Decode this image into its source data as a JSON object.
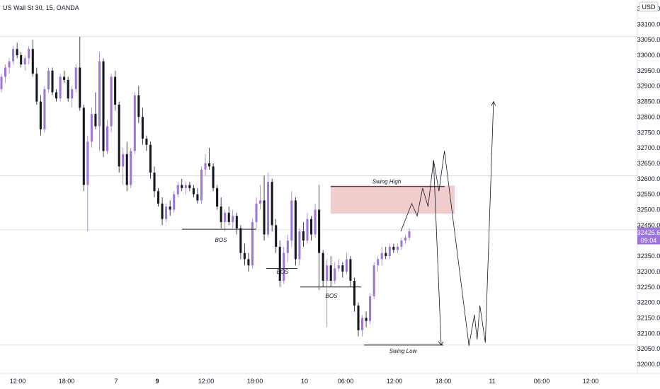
{
  "chart_data": {
    "type": "candlestick",
    "title": "US Wall St 30, 15, OANDA",
    "currency": "USD",
    "y_range": [
      31980,
      33190
    ],
    "y_ticks": [
      32000,
      32050,
      32100,
      32150,
      32200,
      32250,
      32300,
      32350,
      32400,
      32450,
      32500,
      32550,
      32600,
      32650,
      32700,
      32750,
      32800,
      32850,
      32900,
      32950,
      33000,
      33050,
      33100,
      33150
    ],
    "x_ticks": [
      "12:00",
      "18:00",
      "7",
      "9",
      "12:00",
      "18:00",
      "10",
      "06:00",
      "12:00",
      "18:00",
      "11",
      "06:00",
      "12:00"
    ],
    "current_price": "32426.6",
    "countdown": "09:04",
    "horizontal_lines": [
      33060,
      32610,
      32435,
      32062
    ],
    "annotations": {
      "bos_labels": [
        "BOS",
        "BOS",
        "BOS"
      ],
      "swing_high_label": "Swing High",
      "swing_low_label": "Swing Low",
      "swing_high_level": 32575,
      "swing_low_level": 32062,
      "supply_zone": [
        32487,
        32578
      ]
    },
    "candles": [
      {
        "o": 32890,
        "h": 32940,
        "l": 32880,
        "c": 32930
      },
      {
        "o": 32930,
        "h": 32970,
        "l": 32910,
        "c": 32960
      },
      {
        "o": 32960,
        "h": 32990,
        "l": 32940,
        "c": 32980
      },
      {
        "o": 32980,
        "h": 33030,
        "l": 32970,
        "c": 33020
      },
      {
        "o": 33020,
        "h": 33040,
        "l": 32990,
        "c": 33000
      },
      {
        "o": 33000,
        "h": 33010,
        "l": 32960,
        "c": 32970
      },
      {
        "o": 32970,
        "h": 33000,
        "l": 32950,
        "c": 32990
      },
      {
        "o": 32990,
        "h": 33030,
        "l": 32970,
        "c": 33020
      },
      {
        "o": 33020,
        "h": 33050,
        "l": 32930,
        "c": 32940
      },
      {
        "o": 32940,
        "h": 32960,
        "l": 32840,
        "c": 32850
      },
      {
        "o": 32850,
        "h": 32870,
        "l": 32740,
        "c": 32760
      },
      {
        "o": 32760,
        "h": 32900,
        "l": 32750,
        "c": 32890
      },
      {
        "o": 32890,
        "h": 32960,
        "l": 32880,
        "c": 32950
      },
      {
        "o": 32950,
        "h": 32960,
        "l": 32870,
        "c": 32880
      },
      {
        "o": 32880,
        "h": 32890,
        "l": 32850,
        "c": 32860
      },
      {
        "o": 32860,
        "h": 32940,
        "l": 32850,
        "c": 32930
      },
      {
        "o": 32930,
        "h": 32950,
        "l": 32910,
        "c": 32920
      },
      {
        "o": 32920,
        "h": 32930,
        "l": 32850,
        "c": 32860
      },
      {
        "o": 32860,
        "h": 32900,
        "l": 32830,
        "c": 32890
      },
      {
        "o": 32890,
        "h": 32970,
        "l": 32880,
        "c": 32960
      },
      {
        "o": 32960,
        "h": 33060,
        "l": 32820,
        "c": 32830
      },
      {
        "o": 32830,
        "h": 32840,
        "l": 32560,
        "c": 32580
      },
      {
        "o": 32580,
        "h": 32740,
        "l": 32430,
        "c": 32720
      },
      {
        "o": 32720,
        "h": 32830,
        "l": 32700,
        "c": 32810
      },
      {
        "o": 32810,
        "h": 32880,
        "l": 32760,
        "c": 32770
      },
      {
        "o": 32770,
        "h": 33010,
        "l": 32690,
        "c": 32980
      },
      {
        "o": 32980,
        "h": 32990,
        "l": 32670,
        "c": 32690
      },
      {
        "o": 32690,
        "h": 32790,
        "l": 32680,
        "c": 32770
      },
      {
        "o": 32770,
        "h": 32940,
        "l": 32750,
        "c": 32930
      },
      {
        "o": 32930,
        "h": 32950,
        "l": 32820,
        "c": 32840
      },
      {
        "o": 32840,
        "h": 32850,
        "l": 32620,
        "c": 32640
      },
      {
        "o": 32640,
        "h": 32700,
        "l": 32580,
        "c": 32680
      },
      {
        "o": 32680,
        "h": 32720,
        "l": 32560,
        "c": 32580
      },
      {
        "o": 32580,
        "h": 32700,
        "l": 32570,
        "c": 32690
      },
      {
        "o": 32690,
        "h": 32880,
        "l": 32680,
        "c": 32870
      },
      {
        "o": 32870,
        "h": 32900,
        "l": 32780,
        "c": 32800
      },
      {
        "o": 32800,
        "h": 32830,
        "l": 32710,
        "c": 32730
      },
      {
        "o": 32730,
        "h": 32740,
        "l": 32690,
        "c": 32710
      },
      {
        "o": 32710,
        "h": 32720,
        "l": 32600,
        "c": 32620
      },
      {
        "o": 32620,
        "h": 32640,
        "l": 32540,
        "c": 32560
      },
      {
        "o": 32560,
        "h": 32570,
        "l": 32510,
        "c": 32520
      },
      {
        "o": 32520,
        "h": 32540,
        "l": 32450,
        "c": 32470
      },
      {
        "o": 32470,
        "h": 32520,
        "l": 32460,
        "c": 32510
      },
      {
        "o": 32510,
        "h": 32530,
        "l": 32480,
        "c": 32500
      },
      {
        "o": 32500,
        "h": 32560,
        "l": 32490,
        "c": 32550
      },
      {
        "o": 32550,
        "h": 32590,
        "l": 32540,
        "c": 32580
      },
      {
        "o": 32580,
        "h": 32600,
        "l": 32560,
        "c": 32570
      },
      {
        "o": 32570,
        "h": 32590,
        "l": 32550,
        "c": 32580
      },
      {
        "o": 32580,
        "h": 32590,
        "l": 32560,
        "c": 32570
      },
      {
        "o": 32570,
        "h": 32580,
        "l": 32540,
        "c": 32550
      },
      {
        "o": 32550,
        "h": 32570,
        "l": 32520,
        "c": 32530
      },
      {
        "o": 32530,
        "h": 32640,
        "l": 32520,
        "c": 32630
      },
      {
        "o": 32630,
        "h": 32680,
        "l": 32610,
        "c": 32650
      },
      {
        "o": 32650,
        "h": 32700,
        "l": 32630,
        "c": 32640
      },
      {
        "o": 32640,
        "h": 32650,
        "l": 32560,
        "c": 32570
      },
      {
        "o": 32570,
        "h": 32580,
        "l": 32500,
        "c": 32510
      },
      {
        "o": 32510,
        "h": 32540,
        "l": 32440,
        "c": 32460
      },
      {
        "o": 32460,
        "h": 32500,
        "l": 32430,
        "c": 32490
      },
      {
        "o": 32490,
        "h": 32510,
        "l": 32450,
        "c": 32460
      },
      {
        "o": 32460,
        "h": 32500,
        "l": 32440,
        "c": 32480
      },
      {
        "o": 32480,
        "h": 32490,
        "l": 32420,
        "c": 32440
      },
      {
        "o": 32440,
        "h": 32450,
        "l": 32340,
        "c": 32360
      },
      {
        "o": 32360,
        "h": 32390,
        "l": 32320,
        "c": 32340
      },
      {
        "o": 32340,
        "h": 32360,
        "l": 32300,
        "c": 32320
      },
      {
        "o": 32320,
        "h": 32470,
        "l": 32310,
        "c": 32460
      },
      {
        "o": 32460,
        "h": 32540,
        "l": 32440,
        "c": 32520
      },
      {
        "o": 32520,
        "h": 32580,
        "l": 32500,
        "c": 32530
      },
      {
        "o": 32530,
        "h": 32610,
        "l": 32400,
        "c": 32420
      },
      {
        "o": 32420,
        "h": 32620,
        "l": 32410,
        "c": 32590
      },
      {
        "o": 32590,
        "h": 32600,
        "l": 32430,
        "c": 32450
      },
      {
        "o": 32450,
        "h": 32470,
        "l": 32360,
        "c": 32380
      },
      {
        "o": 32380,
        "h": 32400,
        "l": 32250,
        "c": 32270
      },
      {
        "o": 32270,
        "h": 32380,
        "l": 32260,
        "c": 32360
      },
      {
        "o": 32360,
        "h": 32420,
        "l": 32330,
        "c": 32400
      },
      {
        "o": 32400,
        "h": 32560,
        "l": 32380,
        "c": 32530
      },
      {
        "o": 32530,
        "h": 32540,
        "l": 32320,
        "c": 32340
      },
      {
        "o": 32340,
        "h": 32440,
        "l": 32320,
        "c": 32430
      },
      {
        "o": 32430,
        "h": 32460,
        "l": 32380,
        "c": 32400
      },
      {
        "o": 32400,
        "h": 32490,
        "l": 32390,
        "c": 32470
      },
      {
        "o": 32470,
        "h": 32480,
        "l": 32400,
        "c": 32420
      },
      {
        "o": 32420,
        "h": 32520,
        "l": 32410,
        "c": 32500
      },
      {
        "o": 32500,
        "h": 32580,
        "l": 32240,
        "c": 32360
      },
      {
        "o": 32360,
        "h": 32370,
        "l": 32250,
        "c": 32270
      },
      {
        "o": 32270,
        "h": 32340,
        "l": 32120,
        "c": 32320
      },
      {
        "o": 32320,
        "h": 32350,
        "l": 32250,
        "c": 32270
      },
      {
        "o": 32270,
        "h": 32330,
        "l": 32260,
        "c": 32310
      },
      {
        "o": 32310,
        "h": 32340,
        "l": 32300,
        "c": 32320
      },
      {
        "o": 32320,
        "h": 32330,
        "l": 32280,
        "c": 32300
      },
      {
        "o": 32300,
        "h": 32360,
        "l": 32290,
        "c": 32340
      },
      {
        "o": 32340,
        "h": 32350,
        "l": 32250,
        "c": 32270
      },
      {
        "o": 32270,
        "h": 32280,
        "l": 32170,
        "c": 32190
      },
      {
        "o": 32190,
        "h": 32200,
        "l": 32090,
        "c": 32110
      },
      {
        "o": 32110,
        "h": 32160,
        "l": 32090,
        "c": 32150
      },
      {
        "o": 32150,
        "h": 32170,
        "l": 32120,
        "c": 32140
      },
      {
        "o": 32140,
        "h": 32230,
        "l": 32130,
        "c": 32220
      },
      {
        "o": 32220,
        "h": 32330,
        "l": 32210,
        "c": 32320
      },
      {
        "o": 32320,
        "h": 32350,
        "l": 32300,
        "c": 32340
      },
      {
        "o": 32340,
        "h": 32380,
        "l": 32320,
        "c": 32360
      },
      {
        "o": 32360,
        "h": 32380,
        "l": 32340,
        "c": 32350
      },
      {
        "o": 32350,
        "h": 32390,
        "l": 32340,
        "c": 32380
      },
      {
        "o": 32380,
        "h": 32390,
        "l": 32360,
        "c": 32370
      },
      {
        "o": 32370,
        "h": 32390,
        "l": 32360,
        "c": 32380
      },
      {
        "o": 32380,
        "h": 32410,
        "l": 32370,
        "c": 32400
      },
      {
        "o": 32400,
        "h": 32420,
        "l": 32390,
        "c": 32410
      },
      {
        "o": 32410,
        "h": 32440,
        "l": 32400,
        "c": 32430
      }
    ],
    "projection_path": [
      [
        32430,
        0
      ],
      [
        32520,
        4
      ],
      [
        32480,
        6
      ],
      [
        32570,
        8
      ],
      [
        32510,
        10
      ],
      [
        32660,
        12
      ],
      [
        32560,
        14
      ],
      [
        32690,
        16
      ],
      [
        32060,
        25
      ],
      [
        32160,
        27
      ],
      [
        32080,
        28
      ],
      [
        32190,
        29
      ],
      [
        32070,
        31
      ],
      [
        32850,
        34
      ]
    ]
  }
}
